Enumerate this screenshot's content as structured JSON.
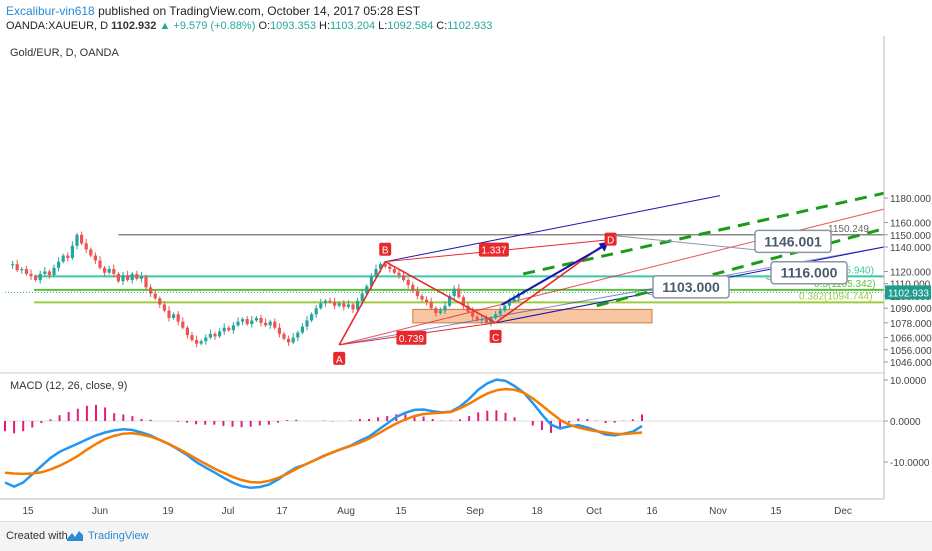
{
  "header": {
    "author": "Excalibur-vin618",
    "published": "published on TradingView.com, October 14, 2017 05:28 EST",
    "symbol": "OANDA:XAUEUR, D",
    "last": "1102.932",
    "change": "▲ +9.579 (+0.88%)",
    "o_label": "O:",
    "o_value": "1093.353",
    "h_label": "H:",
    "h_value": "1103.204",
    "l_label": "L:",
    "l_value": "1092.584",
    "c_label": "C:",
    "c_value": "1102.933"
  },
  "footer": {
    "created_with": "Created with",
    "brand": "TradingView"
  },
  "colors": {
    "up": "#26a69a",
    "down": "#ef5350",
    "pattern": "#e8282b",
    "blue_line": "#1414b4",
    "green_dash": "#1a9c1a",
    "teal": "#3dc7a4",
    "fib05": "#5bbf3a",
    "fib0382": "#9ccc3a",
    "box": "#f4b183",
    "macd": "#2196f3",
    "signal": "#f57c00",
    "hist": "#e5197a",
    "grey_line": "#888888"
  },
  "chart_data": [
    {
      "type": "candlestick",
      "title": "Gold/EUR, D, OANDA",
      "ylim": [
        1040,
        1180
      ],
      "y_ticks": [
        "1180.000",
        "1160.000",
        "1150.000",
        "1140.000",
        "1120.000",
        "1110.000",
        "1100.000",
        "1090.000",
        "1078.000",
        "1066.000",
        "1056.000",
        "1046.000"
      ],
      "x_tick_labels": [
        "15",
        "Jun",
        "19",
        "Jul",
        "17",
        "Aug",
        "15",
        "Sep",
        "18",
        "Oct",
        "16",
        "Nov",
        "15",
        "Dec"
      ],
      "last_price_label": "1102.933",
      "price_trend": [
        1125,
        1126,
        1121,
        1122,
        1118,
        1116,
        1113,
        1118,
        1120,
        1117,
        1123,
        1128,
        1133,
        1131,
        1141,
        1150,
        1143,
        1138,
        1133,
        1129,
        1123,
        1119,
        1122,
        1118,
        1112,
        1117,
        1113,
        1118,
        1114,
        1116,
        1107,
        1102,
        1098,
        1093,
        1088,
        1082,
        1085,
        1079,
        1074,
        1068,
        1064,
        1061,
        1063,
        1066,
        1069,
        1067,
        1071,
        1074,
        1072,
        1076,
        1079,
        1081,
        1077,
        1080,
        1082,
        1078,
        1076,
        1079,
        1074,
        1069,
        1065,
        1062,
        1066,
        1070,
        1075,
        1080,
        1085,
        1090,
        1094,
        1096,
        1095,
        1092,
        1094,
        1091,
        1093,
        1089,
        1096,
        1102,
        1108,
        1116,
        1122,
        1126,
        1124,
        1122,
        1119,
        1117,
        1113,
        1109,
        1104,
        1100,
        1097,
        1095,
        1090,
        1086,
        1088,
        1092,
        1100,
        1106,
        1099,
        1092,
        1087,
        1083,
        1080,
        1081,
        1078,
        1082,
        1085,
        1088,
        1092,
        1096,
        1098,
        1102,
        1102.9
      ],
      "levels": [
        {
          "name": "high-line",
          "label": "1150.249",
          "value": 1150
        },
        {
          "name": "fib-0618",
          "label": "0.618(1115.940)",
          "value": 1116
        },
        {
          "name": "fib-05",
          "label": "0.5(1105.342)",
          "value": 1105
        },
        {
          "name": "fib-0382",
          "label": "0.382(1094.744)",
          "value": 1094.7
        }
      ],
      "points": [
        {
          "label": "A",
          "x": 72,
          "y": 1060
        },
        {
          "label": "B",
          "x": 82,
          "y": 1128
        },
        {
          "label": "C",
          "x": 106,
          "y": 1078
        },
        {
          "label": "D",
          "x": 131,
          "y": 1146
        }
      ],
      "ratios": [
        "1.337",
        "0.739"
      ],
      "callouts": [
        "1146.001",
        "1116.000",
        "1103.000"
      ]
    },
    {
      "type": "line",
      "title": "MACD (12, 26, close, 9)",
      "ylim": [
        -15,
        12
      ],
      "y_ticks": [
        "10.0000",
        "0.0000",
        "-10.0000"
      ],
      "series": [
        {
          "values": [
            -15,
            -16,
            -15,
            -13,
            -11,
            -9,
            -7.5,
            -6.5,
            -5.5,
            -4.5,
            -3.5,
            -2.8,
            -2.3,
            -2,
            -2.2,
            -2.8,
            -3.5,
            -4.6,
            -5.6,
            -6.9,
            -8.3,
            -10,
            -11.3,
            -12.5,
            -13.8,
            -15,
            -15.9,
            -16.3,
            -16.1,
            -15.5,
            -14.3,
            -12.7,
            -11.4,
            -10.6,
            -9.6,
            -8.5,
            -7.7,
            -6.8,
            -6,
            -4.8,
            -3.8,
            -2.2,
            -0.6,
            1,
            2,
            2.7,
            2.8,
            2.4,
            2.1,
            2.3,
            3.5,
            5.4,
            7.6,
            9.2,
            10.1,
            9.8,
            8.5,
            6.9,
            4.4,
            1.6,
            -0.9,
            -1.8,
            -1.3,
            -1,
            -1.6,
            -2.4,
            -3.3,
            -3.5,
            -3.1,
            -2.6,
            -1.2
          ]
        },
        {
          "values": [
            -12.6,
            -12.8,
            -12.9,
            -12.8,
            -12.5,
            -11.8,
            -10.9,
            -9.8,
            -8.5,
            -7,
            -5.6,
            -4.4,
            -3.6,
            -3.1,
            -3,
            -3.3,
            -3.8,
            -4.6,
            -5.6,
            -6.7,
            -7.9,
            -9.2,
            -10.4,
            -11.6,
            -12.6,
            -13.6,
            -14.4,
            -14.9,
            -15,
            -14.6,
            -13.9,
            -12.9,
            -11.7,
            -10.6,
            -9.6,
            -8.6,
            -7.6,
            -6.8,
            -6.1,
            -5.3,
            -4.3,
            -3.1,
            -1.8,
            -0.6,
            0.4,
            1.2,
            1.7,
            1.9,
            2,
            2.2,
            3.1,
            4.2,
            5.5,
            6.7,
            7.5,
            7.8,
            7.6,
            6.9,
            5.5,
            3.8,
            2,
            0.3,
            -0.9,
            -1.6,
            -2.1,
            -2.5,
            -2.8,
            -3.1,
            -3.2,
            -3,
            -2.8
          ]
        }
      ],
      "histogram": [
        -2.5,
        -3,
        -2.5,
        -1.6,
        -0.5,
        0.4,
        1.4,
        2.2,
        3,
        3.7,
        3.9,
        3.3,
        1.9,
        1.6,
        1.2,
        0.5,
        0.3,
        0,
        0,
        -0.2,
        -0.4,
        -0.8,
        -0.9,
        -0.9,
        -1.2,
        -1.4,
        -1.5,
        -1.4,
        -1.1,
        -0.9,
        -0.4,
        0.2,
        0.3,
        0,
        0,
        0.1,
        -0.1,
        0,
        0.1,
        0.5,
        0.5,
        0.9,
        1.2,
        1.6,
        1.6,
        1.5,
        1.1,
        0.5,
        0.1,
        0.1,
        0.4,
        1.2,
        2.1,
        2.5,
        2.6,
        2,
        0.9,
        0,
        -1.1,
        -2.2,
        -2.9,
        -2.1,
        -0.4,
        0.6,
        0.5,
        0.1,
        -0.5,
        -0.4,
        0.1,
        0.4,
        1.6
      ],
      "x_start_index": 0
    }
  ]
}
